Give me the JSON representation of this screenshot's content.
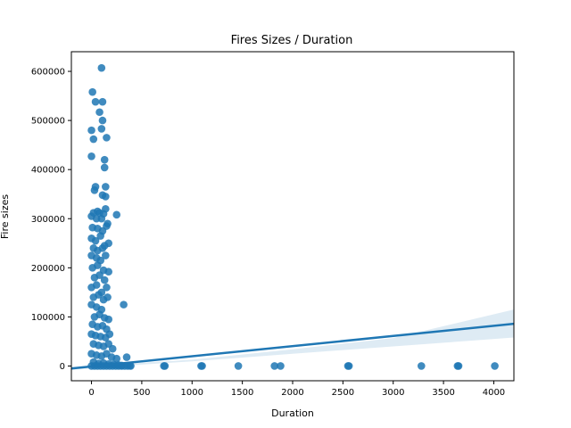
{
  "chart_data": {
    "type": "scatter",
    "title": "Fires Sizes / Duration",
    "xlabel": "Duration",
    "ylabel": "Fire sizes",
    "xlim": [
      -200,
      4200
    ],
    "ylim": [
      -30000,
      640000
    ],
    "xticks": [
      0,
      500,
      1000,
      1500,
      2000,
      2500,
      3000,
      3500,
      4000
    ],
    "xtick_labels": [
      "0",
      "500",
      "1000",
      "1500",
      "2000",
      "2500",
      "3000",
      "3500",
      "4000"
    ],
    "yticks": [
      0,
      100000,
      200000,
      300000,
      400000,
      500000,
      600000
    ],
    "ytick_labels": [
      "0",
      "100000",
      "200000",
      "300000",
      "400000",
      "500000",
      "600000"
    ],
    "grid": false,
    "point_color": "#1f77b4",
    "regression_line": {
      "x": [
        -200,
        4200
      ],
      "y": [
        -5000,
        86000
      ]
    },
    "confidence_band": {
      "x": [
        -200,
        500,
        1000,
        2000,
        3000,
        4200
      ],
      "lower": [
        -8000,
        3000,
        9500,
        25000,
        40000,
        58000
      ],
      "upper": [
        -2000,
        6500,
        13000,
        34000,
        57000,
        115000
      ]
    },
    "points": [
      [
        100,
        607000
      ],
      [
        10,
        558000
      ],
      [
        110,
        538000
      ],
      [
        40,
        538000
      ],
      [
        80,
        517000
      ],
      [
        110,
        500000
      ],
      [
        0,
        480000
      ],
      [
        100,
        483000
      ],
      [
        150,
        465000
      ],
      [
        20,
        462000
      ],
      [
        0,
        427000
      ],
      [
        130,
        420000
      ],
      [
        130,
        404000
      ],
      [
        40,
        365000
      ],
      [
        140,
        365000
      ],
      [
        30,
        358000
      ],
      [
        110,
        348000
      ],
      [
        140,
        345000
      ],
      [
        60,
        315000
      ],
      [
        20,
        312000
      ],
      [
        140,
        320000
      ],
      [
        250,
        308000
      ],
      [
        80,
        312000
      ],
      [
        120,
        310000
      ],
      [
        0,
        305000
      ],
      [
        50,
        300000
      ],
      [
        100,
        300000
      ],
      [
        160,
        290000
      ],
      [
        10,
        282000
      ],
      [
        60,
        280000
      ],
      [
        110,
        275000
      ],
      [
        150,
        285000
      ],
      [
        0,
        260000
      ],
      [
        40,
        255000
      ],
      [
        90,
        265000
      ],
      [
        130,
        245000
      ],
      [
        170,
        250000
      ],
      [
        20,
        240000
      ],
      [
        60,
        235000
      ],
      [
        110,
        240000
      ],
      [
        0,
        225000
      ],
      [
        50,
        220000
      ],
      [
        90,
        215000
      ],
      [
        140,
        225000
      ],
      [
        10,
        200000
      ],
      [
        60,
        205000
      ],
      [
        120,
        195000
      ],
      [
        170,
        192000
      ],
      [
        30,
        180000
      ],
      [
        80,
        185000
      ],
      [
        130,
        175000
      ],
      [
        0,
        160000
      ],
      [
        50,
        165000
      ],
      [
        100,
        150000
      ],
      [
        150,
        160000
      ],
      [
        20,
        140000
      ],
      [
        70,
        145000
      ],
      [
        120,
        135000
      ],
      [
        160,
        140000
      ],
      [
        0,
        125000
      ],
      [
        50,
        120000
      ],
      [
        100,
        115000
      ],
      [
        320,
        125000
      ],
      [
        30,
        100000
      ],
      [
        80,
        105000
      ],
      [
        130,
        98000
      ],
      [
        170,
        95000
      ],
      [
        10,
        85000
      ],
      [
        60,
        80000
      ],
      [
        110,
        82000
      ],
      [
        150,
        75000
      ],
      [
        0,
        65000
      ],
      [
        40,
        62000
      ],
      [
        90,
        60000
      ],
      [
        140,
        58000
      ],
      [
        180,
        65000
      ],
      [
        20,
        45000
      ],
      [
        70,
        42000
      ],
      [
        120,
        40000
      ],
      [
        170,
        45000
      ],
      [
        210,
        35000
      ],
      [
        0,
        25000
      ],
      [
        50,
        22000
      ],
      [
        100,
        20000
      ],
      [
        150,
        25000
      ],
      [
        200,
        18000
      ],
      [
        250,
        15000
      ],
      [
        20,
        8000
      ],
      [
        70,
        5000
      ],
      [
        120,
        6000
      ],
      [
        170,
        4000
      ],
      [
        220,
        3000
      ],
      [
        270,
        2000
      ],
      [
        300,
        1000
      ],
      [
        350,
        18000
      ],
      [
        380,
        500
      ],
      [
        0,
        0
      ],
      [
        30,
        0
      ],
      [
        60,
        0
      ],
      [
        90,
        0
      ],
      [
        120,
        0
      ],
      [
        150,
        0
      ],
      [
        180,
        0
      ],
      [
        210,
        0
      ],
      [
        240,
        0
      ],
      [
        270,
        0
      ],
      [
        300,
        0
      ],
      [
        330,
        0
      ],
      [
        360,
        0
      ],
      [
        390,
        0
      ],
      [
        720,
        0
      ],
      [
        730,
        0
      ],
      [
        1090,
        0
      ],
      [
        1100,
        0
      ],
      [
        1460,
        0
      ],
      [
        1820,
        0
      ],
      [
        1880,
        0
      ],
      [
        2550,
        0
      ],
      [
        2560,
        0
      ],
      [
        3280,
        0
      ],
      [
        3640,
        0
      ],
      [
        3650,
        0
      ],
      [
        4010,
        0
      ]
    ]
  }
}
